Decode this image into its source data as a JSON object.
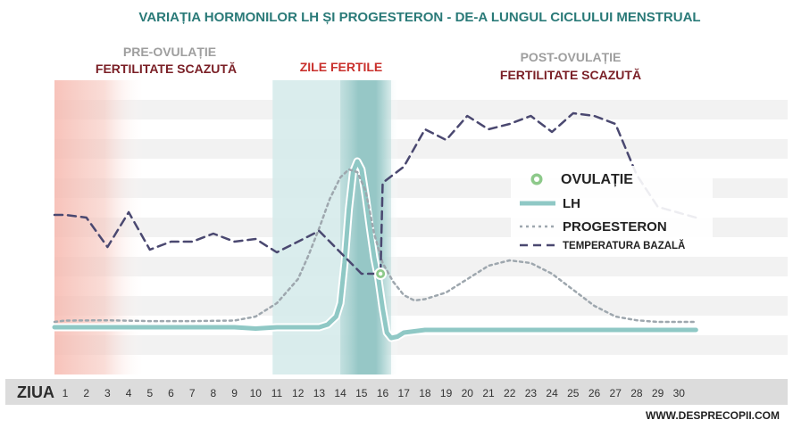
{
  "title": "VARIAȚIA HORMONILOR LH ȘI PROGESTERON - DE-A LUNGUL CICLULUI MENSTRUAL",
  "phases": {
    "pre_label": "PRE-OVULAȚIE",
    "pre_sub": "FERTILITATE SCAZUTĂ",
    "fertile_label": "ZILE FERTILE",
    "post_label": "POST-OVULAȚIE",
    "post_sub": "FERTILITATE SCAZUTĂ"
  },
  "legend": {
    "ovulation": "OVULAȚIE",
    "lh": "LH",
    "progesteron": "PROGESTERON",
    "temperature": "TEMPERATURA BAZALĂ"
  },
  "xaxis": {
    "label": "ZIUA"
  },
  "watermark": "WWW.DESPRECOPII.COM",
  "colors": {
    "title": "#2a7a78",
    "phase_gray": "#9e9e9e",
    "phase_red": "#7a1f26",
    "fertile_red": "#c9302c",
    "lh": "#8fc8c5",
    "progesterone": "#9ea7ae",
    "temperature": "#4a4870",
    "ovulation": "#8dc98a",
    "pre_zone": "#f6b8ae",
    "fertile_zone": "#d6ebeb",
    "peak_zone": "#a9d2d1",
    "axis_band": "#dcdcdc"
  },
  "chart_data": {
    "type": "line",
    "title": "VARIAȚIA HORMONILOR LH ȘI PROGESTERON - DE-A LUNGUL CICLULUI MENSTRUAL",
    "xlabel": "ZIUA",
    "ylabel": "",
    "x": [
      1,
      2,
      3,
      4,
      5,
      6,
      7,
      8,
      9,
      10,
      11,
      12,
      13,
      14,
      15,
      16,
      17,
      18,
      19,
      20,
      21,
      22,
      23,
      24,
      25,
      26,
      27,
      28,
      29,
      30
    ],
    "xlim": [
      0,
      30.8
    ],
    "ylim": [
      0,
      100
    ],
    "grid": true,
    "legend_position": "right",
    "zones": {
      "pre_ovulation": [
        0,
        4.8
      ],
      "fertile": [
        10.8,
        16.8
      ],
      "peak": [
        14.0,
        16.4
      ]
    },
    "ovulation_point": {
      "x": 15.9,
      "y": 31
    },
    "series": [
      {
        "name": "LH",
        "style": "solid",
        "values": [
          [
            0,
            11
          ],
          [
            1,
            11
          ],
          [
            2,
            11
          ],
          [
            3,
            11
          ],
          [
            4,
            11
          ],
          [
            5,
            11
          ],
          [
            6,
            11
          ],
          [
            7,
            11
          ],
          [
            8,
            11
          ],
          [
            9,
            11
          ],
          [
            10,
            10.5
          ],
          [
            11,
            11
          ],
          [
            12,
            11
          ],
          [
            13,
            11
          ],
          [
            13.4,
            12
          ],
          [
            13.8,
            15
          ],
          [
            14.0,
            20
          ],
          [
            14.2,
            35
          ],
          [
            14.4,
            55
          ],
          [
            14.6,
            69
          ],
          [
            14.8,
            73
          ],
          [
            15.0,
            70
          ],
          [
            15.2,
            60
          ],
          [
            15.4,
            48
          ],
          [
            15.6,
            37
          ],
          [
            15.8,
            29
          ],
          [
            16.0,
            18
          ],
          [
            16.2,
            9
          ],
          [
            16.4,
            7
          ],
          [
            16.7,
            7.5
          ],
          [
            17,
            9
          ],
          [
            18,
            10
          ],
          [
            20,
            10
          ],
          [
            22,
            10
          ],
          [
            25,
            10
          ],
          [
            28,
            10
          ],
          [
            30.8,
            10
          ]
        ]
      },
      {
        "name": "PROGESTERON",
        "style": "dotted",
        "values": [
          [
            0,
            13
          ],
          [
            1,
            13.5
          ],
          [
            3,
            13.6
          ],
          [
            5,
            13.3
          ],
          [
            7,
            13.3
          ],
          [
            9,
            13.5
          ],
          [
            10,
            15
          ],
          [
            11,
            20
          ],
          [
            12,
            29
          ],
          [
            12.5,
            38
          ],
          [
            13,
            48
          ],
          [
            13.5,
            59
          ],
          [
            14,
            67
          ],
          [
            14.4,
            70
          ],
          [
            14.8,
            69
          ],
          [
            15.2,
            62
          ],
          [
            15.6,
            46
          ],
          [
            16,
            35
          ],
          [
            16.5,
            28
          ],
          [
            17,
            23
          ],
          [
            17.5,
            21
          ],
          [
            18,
            21.5
          ],
          [
            19,
            24
          ],
          [
            20,
            29
          ],
          [
            21,
            34
          ],
          [
            22,
            36
          ],
          [
            23,
            35
          ],
          [
            24,
            31
          ],
          [
            25,
            25
          ],
          [
            26,
            19
          ],
          [
            27,
            15
          ],
          [
            28,
            13.6
          ],
          [
            29,
            13
          ],
          [
            30.8,
            13
          ]
        ]
      },
      {
        "name": "TEMPERATURA BAZALĂ",
        "style": "dashed",
        "values": [
          [
            0,
            53
          ],
          [
            1,
            53
          ],
          [
            2,
            52
          ],
          [
            3,
            41
          ],
          [
            4,
            54
          ],
          [
            5,
            40
          ],
          [
            6,
            43
          ],
          [
            7,
            43
          ],
          [
            8,
            46
          ],
          [
            9,
            43
          ],
          [
            10,
            44
          ],
          [
            11,
            39
          ],
          [
            12,
            43
          ],
          [
            13,
            47
          ],
          [
            14,
            39
          ],
          [
            15,
            31
          ],
          [
            15.9,
            31
          ],
          [
            16,
            65
          ],
          [
            17,
            71
          ],
          [
            18,
            85
          ],
          [
            19,
            81
          ],
          [
            20,
            90
          ],
          [
            21,
            85
          ],
          [
            22,
            87
          ],
          [
            23,
            90
          ],
          [
            24,
            84
          ],
          [
            25,
            91
          ],
          [
            26,
            90
          ],
          [
            27,
            87
          ],
          [
            28,
            68
          ],
          [
            29,
            56
          ],
          [
            30.8,
            52
          ]
        ]
      }
    ]
  }
}
